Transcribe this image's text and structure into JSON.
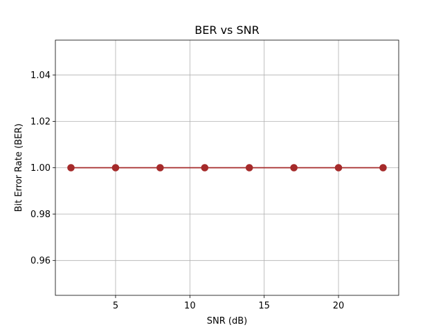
{
  "chart_data": {
    "type": "line",
    "title": "BER vs SNR",
    "xlabel": "SNR (dB)",
    "ylabel": "Bit Error Rate (BER)",
    "x": [
      2,
      5,
      8,
      11,
      14,
      17,
      20,
      23
    ],
    "series": [
      {
        "values": [
          1.0,
          1.0,
          1.0,
          1.0,
          1.0,
          1.0,
          1.0,
          1.0
        ],
        "color": "#a52a2a",
        "marker": "circle"
      }
    ],
    "xlim": [
      0.95,
      24.05
    ],
    "ylim": [
      0.945,
      1.055
    ],
    "xticks": [
      5,
      10,
      15,
      20
    ],
    "xtick_labels": [
      "5",
      "10",
      "15",
      "20"
    ],
    "yticks": [
      0.96,
      0.98,
      1.0,
      1.02,
      1.04
    ],
    "ytick_labels": [
      "0.96",
      "0.98",
      "1.00",
      "1.02",
      "1.04"
    ],
    "grid": true
  }
}
